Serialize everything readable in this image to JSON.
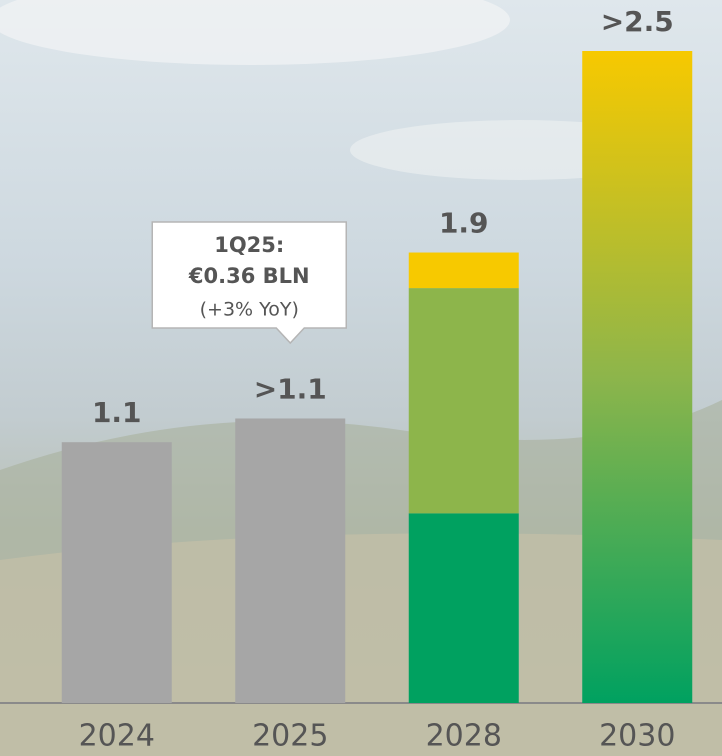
{
  "chart_data": {
    "type": "bar",
    "stacked": true,
    "categories": [
      "2024",
      "2025",
      "2028",
      "2030"
    ],
    "series": [
      {
        "color": "#a6a6a6",
        "values": [
          1.1,
          1.2,
          null,
          null
        ]
      },
      {
        "color": "#00a160",
        "values": [
          null,
          null,
          0.8,
          null
        ]
      },
      {
        "color": "#8db54b",
        "values": [
          null,
          null,
          0.95,
          null
        ]
      },
      {
        "color": "#f7c900",
        "values": [
          null,
          null,
          0.15,
          null
        ]
      },
      {
        "gradient": [
          "#f7c900",
          "#8db54b",
          "#00a160"
        ],
        "values": [
          null,
          null,
          null,
          2.75
        ]
      }
    ],
    "total_labels": [
      "1.1",
      ">1.1",
      "1.9",
      ">2.5"
    ],
    "ylim": [
      0,
      2.75
    ],
    "annotation": {
      "category": "2025",
      "title": "1Q25:",
      "value": "€0.36 BLN",
      "note": "(+3% YoY)"
    }
  }
}
